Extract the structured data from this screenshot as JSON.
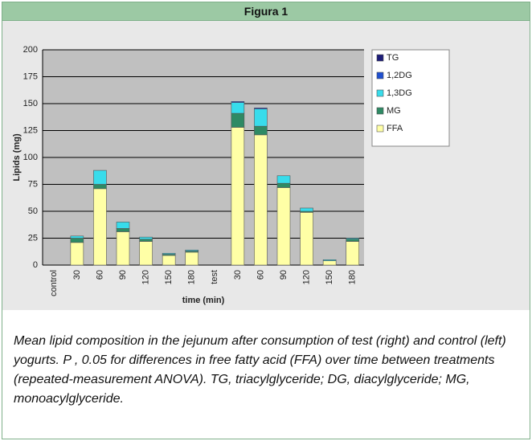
{
  "figure_title": "Figura 1",
  "chart_data": {
    "type": "stacked_bar",
    "x_label": "time (min)",
    "y_label": "Lipids (mg)",
    "categories": [
      "control",
      "30",
      "60",
      "90",
      "120",
      "150",
      "180",
      "test",
      "30",
      "60",
      "90",
      "120",
      "150",
      "180"
    ],
    "series": [
      {
        "name": "TG",
        "color": "#1c1c78",
        "values": [
          0,
          0,
          0,
          0,
          0,
          0,
          0,
          0,
          0,
          0,
          0,
          0,
          0,
          0
        ]
      },
      {
        "name": "1,2DG",
        "color": "#2050d0",
        "values": [
          0,
          0,
          0,
          0,
          0,
          0,
          0,
          0,
          1,
          1,
          0,
          0,
          0,
          0
        ]
      },
      {
        "name": "1,3DG",
        "color": "#38dceb",
        "values": [
          0,
          2,
          13,
          6,
          2,
          1,
          1,
          0,
          10,
          16,
          7,
          3,
          1,
          1
        ]
      },
      {
        "name": "MG",
        "color": "#2e8a64",
        "values": [
          0,
          4,
          4,
          3,
          2,
          1,
          1,
          0,
          13,
          8,
          4,
          1,
          0,
          2
        ]
      },
      {
        "name": "FFA",
        "color": "#ffffa6",
        "values": [
          0,
          21,
          71,
          31,
          22,
          9,
          12,
          0,
          128,
          121,
          72,
          49,
          4,
          22
        ]
      }
    ],
    "ylim": [
      0,
      200
    ],
    "yticks": [
      0,
      25,
      50,
      75,
      100,
      125,
      150,
      175,
      200
    ],
    "grid": true,
    "legend": "right"
  },
  "caption": "Mean lipid composition in the jejunum after consumption of test (right) and control (left) yogurts. P , 0.05 for differences in free fatty acid (FFA) over time between treatments (repeated-measurement ANOVA). TG, triacylglyceride; DG, diacylglyceride; MG, monoacylglyceride."
}
